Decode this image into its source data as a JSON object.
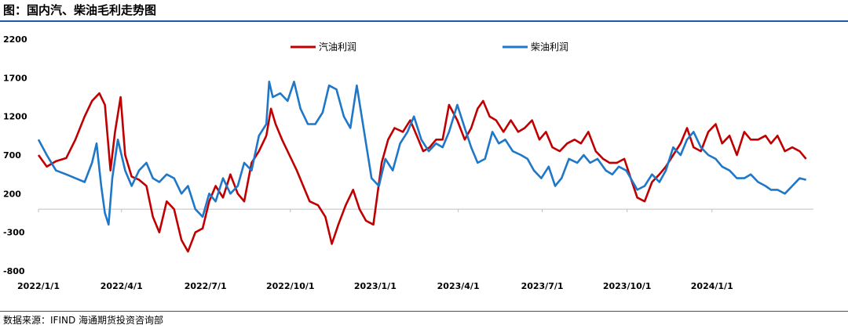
{
  "title": "图：国内汽、柴油毛利走势图",
  "source": "数据来源：IFIND   海通期货投资咨询部",
  "colors": {
    "gasoline": "#c00000",
    "diesel": "#1f77c8",
    "rule": "#1f5aa6"
  },
  "chart_data": {
    "type": "line",
    "title": "图：国内汽、柴油毛利走势图",
    "xlabel": "",
    "ylabel": "",
    "ylim": [
      -800,
      2200
    ],
    "yticks": [
      2200,
      1700,
      1200,
      700,
      200,
      -300,
      -800
    ],
    "xlim": [
      "2022-01-01",
      "2024-04-20"
    ],
    "xticks": [
      "2022/1/1",
      "2022/4/1",
      "2022/7/1",
      "2022/10/1",
      "2023/1/1",
      "2023/4/1",
      "2023/7/1",
      "2023/10/1",
      "2024/1/1"
    ],
    "grid": false,
    "legend": "top",
    "series": [
      {
        "name": "汽油利润",
        "color": "#c00000",
        "points": [
          [
            "2022-01-01",
            700
          ],
          [
            "2022-01-10",
            550
          ],
          [
            "2022-01-20",
            620
          ],
          [
            "2022-01-31",
            660
          ],
          [
            "2022-02-10",
            900
          ],
          [
            "2022-02-20",
            1200
          ],
          [
            "2022-02-28",
            1400
          ],
          [
            "2022-03-08",
            1500
          ],
          [
            "2022-03-14",
            1350
          ],
          [
            "2022-03-20",
            500
          ],
          [
            "2022-03-25",
            1000
          ],
          [
            "2022-03-31",
            1450
          ],
          [
            "2022-04-05",
            700
          ],
          [
            "2022-04-12",
            420
          ],
          [
            "2022-04-20",
            380
          ],
          [
            "2022-04-28",
            300
          ],
          [
            "2022-05-05",
            -100
          ],
          [
            "2022-05-12",
            -300
          ],
          [
            "2022-05-20",
            100
          ],
          [
            "2022-05-28",
            0
          ],
          [
            "2022-06-05",
            -400
          ],
          [
            "2022-06-12",
            -550
          ],
          [
            "2022-06-20",
            -300
          ],
          [
            "2022-06-28",
            -250
          ],
          [
            "2022-07-05",
            100
          ],
          [
            "2022-07-12",
            300
          ],
          [
            "2022-07-20",
            150
          ],
          [
            "2022-07-28",
            450
          ],
          [
            "2022-08-05",
            200
          ],
          [
            "2022-08-12",
            100
          ],
          [
            "2022-08-20",
            600
          ],
          [
            "2022-08-28",
            750
          ],
          [
            "2022-09-05",
            950
          ],
          [
            "2022-09-10",
            1300
          ],
          [
            "2022-09-15",
            1100
          ],
          [
            "2022-09-22",
            900
          ],
          [
            "2022-09-30",
            700
          ],
          [
            "2022-10-08",
            500
          ],
          [
            "2022-10-15",
            300
          ],
          [
            "2022-10-22",
            100
          ],
          [
            "2022-10-31",
            50
          ],
          [
            "2022-11-08",
            -100
          ],
          [
            "2022-11-15",
            -450
          ],
          [
            "2022-11-22",
            -200
          ],
          [
            "2022-11-30",
            50
          ],
          [
            "2022-12-08",
            250
          ],
          [
            "2022-12-15",
            0
          ],
          [
            "2022-12-22",
            -150
          ],
          [
            "2022-12-30",
            -200
          ],
          [
            "2023-01-08",
            600
          ],
          [
            "2023-01-15",
            900
          ],
          [
            "2023-01-22",
            1050
          ],
          [
            "2023-01-31",
            1000
          ],
          [
            "2023-02-08",
            1150
          ],
          [
            "2023-02-15",
            950
          ],
          [
            "2023-02-22",
            750
          ],
          [
            "2023-03-01",
            800
          ],
          [
            "2023-03-08",
            900
          ],
          [
            "2023-03-15",
            900
          ],
          [
            "2023-03-22",
            1350
          ],
          [
            "2023-03-31",
            1150
          ],
          [
            "2023-04-08",
            900
          ],
          [
            "2023-04-15",
            1050
          ],
          [
            "2023-04-22",
            1300
          ],
          [
            "2023-04-28",
            1400
          ],
          [
            "2023-05-05",
            1200
          ],
          [
            "2023-05-12",
            1150
          ],
          [
            "2023-05-20",
            1000
          ],
          [
            "2023-05-28",
            1150
          ],
          [
            "2023-06-05",
            1000
          ],
          [
            "2023-06-12",
            1050
          ],
          [
            "2023-06-20",
            1150
          ],
          [
            "2023-06-28",
            900
          ],
          [
            "2023-07-05",
            1000
          ],
          [
            "2023-07-12",
            800
          ],
          [
            "2023-07-20",
            750
          ],
          [
            "2023-07-28",
            850
          ],
          [
            "2023-08-05",
            900
          ],
          [
            "2023-08-12",
            850
          ],
          [
            "2023-08-20",
            1000
          ],
          [
            "2023-08-28",
            750
          ],
          [
            "2023-09-05",
            650
          ],
          [
            "2023-09-12",
            600
          ],
          [
            "2023-09-20",
            600
          ],
          [
            "2023-09-28",
            650
          ],
          [
            "2023-10-05",
            400
          ],
          [
            "2023-10-12",
            150
          ],
          [
            "2023-10-20",
            100
          ],
          [
            "2023-10-28",
            350
          ],
          [
            "2023-11-05",
            450
          ],
          [
            "2023-11-12",
            550
          ],
          [
            "2023-11-20",
            700
          ],
          [
            "2023-11-28",
            850
          ],
          [
            "2023-12-05",
            1050
          ],
          [
            "2023-12-12",
            800
          ],
          [
            "2023-12-20",
            750
          ],
          [
            "2023-12-28",
            1000
          ],
          [
            "2024-01-05",
            1100
          ],
          [
            "2024-01-12",
            850
          ],
          [
            "2024-01-20",
            950
          ],
          [
            "2024-01-28",
            700
          ],
          [
            "2024-02-05",
            1000
          ],
          [
            "2024-02-12",
            900
          ],
          [
            "2024-02-20",
            900
          ],
          [
            "2024-02-28",
            950
          ],
          [
            "2024-03-05",
            850
          ],
          [
            "2024-03-12",
            950
          ],
          [
            "2024-03-20",
            750
          ],
          [
            "2024-03-28",
            800
          ],
          [
            "2024-04-05",
            750
          ],
          [
            "2024-04-12",
            650
          ]
        ]
      },
      {
        "name": "柴油利润",
        "color": "#1f77c8",
        "points": [
          [
            "2022-01-01",
            900
          ],
          [
            "2022-01-10",
            700
          ],
          [
            "2022-01-20",
            500
          ],
          [
            "2022-01-31",
            450
          ],
          [
            "2022-02-10",
            400
          ],
          [
            "2022-02-20",
            350
          ],
          [
            "2022-02-28",
            600
          ],
          [
            "2022-03-05",
            850
          ],
          [
            "2022-03-10",
            300
          ],
          [
            "2022-03-14",
            -50
          ],
          [
            "2022-03-18",
            -200
          ],
          [
            "2022-03-22",
            400
          ],
          [
            "2022-03-28",
            900
          ],
          [
            "2022-04-05",
            500
          ],
          [
            "2022-04-12",
            300
          ],
          [
            "2022-04-20",
            500
          ],
          [
            "2022-04-28",
            600
          ],
          [
            "2022-05-05",
            400
          ],
          [
            "2022-05-12",
            350
          ],
          [
            "2022-05-20",
            450
          ],
          [
            "2022-05-28",
            400
          ],
          [
            "2022-06-05",
            200
          ],
          [
            "2022-06-12",
            300
          ],
          [
            "2022-06-20",
            0
          ],
          [
            "2022-06-28",
            -100
          ],
          [
            "2022-07-05",
            200
          ],
          [
            "2022-07-12",
            100
          ],
          [
            "2022-07-20",
            400
          ],
          [
            "2022-07-28",
            200
          ],
          [
            "2022-08-05",
            300
          ],
          [
            "2022-08-12",
            600
          ],
          [
            "2022-08-20",
            500
          ],
          [
            "2022-08-28",
            950
          ],
          [
            "2022-09-05",
            1100
          ],
          [
            "2022-09-08",
            1650
          ],
          [
            "2022-09-12",
            1450
          ],
          [
            "2022-09-20",
            1500
          ],
          [
            "2022-09-28",
            1400
          ],
          [
            "2022-10-05",
            1650
          ],
          [
            "2022-10-12",
            1300
          ],
          [
            "2022-10-20",
            1100
          ],
          [
            "2022-10-28",
            1100
          ],
          [
            "2022-11-05",
            1250
          ],
          [
            "2022-11-12",
            1600
          ],
          [
            "2022-11-20",
            1550
          ],
          [
            "2022-11-28",
            1200
          ],
          [
            "2022-12-05",
            1050
          ],
          [
            "2022-12-12",
            1600
          ],
          [
            "2022-12-20",
            1000
          ],
          [
            "2022-12-28",
            400
          ],
          [
            "2023-01-05",
            300
          ],
          [
            "2023-01-12",
            650
          ],
          [
            "2023-01-20",
            500
          ],
          [
            "2023-01-28",
            850
          ],
          [
            "2023-02-05",
            1000
          ],
          [
            "2023-02-12",
            1200
          ],
          [
            "2023-02-20",
            900
          ],
          [
            "2023-02-28",
            750
          ],
          [
            "2023-03-08",
            850
          ],
          [
            "2023-03-15",
            800
          ],
          [
            "2023-03-22",
            1000
          ],
          [
            "2023-03-31",
            1350
          ],
          [
            "2023-04-08",
            1050
          ],
          [
            "2023-04-15",
            800
          ],
          [
            "2023-04-22",
            600
          ],
          [
            "2023-04-30",
            650
          ],
          [
            "2023-05-08",
            1000
          ],
          [
            "2023-05-15",
            850
          ],
          [
            "2023-05-22",
            900
          ],
          [
            "2023-05-30",
            750
          ],
          [
            "2023-06-08",
            700
          ],
          [
            "2023-06-15",
            650
          ],
          [
            "2023-06-22",
            500
          ],
          [
            "2023-06-30",
            400
          ],
          [
            "2023-07-08",
            550
          ],
          [
            "2023-07-15",
            300
          ],
          [
            "2023-07-22",
            400
          ],
          [
            "2023-07-30",
            650
          ],
          [
            "2023-08-08",
            600
          ],
          [
            "2023-08-15",
            700
          ],
          [
            "2023-08-22",
            600
          ],
          [
            "2023-08-30",
            650
          ],
          [
            "2023-09-08",
            500
          ],
          [
            "2023-09-15",
            450
          ],
          [
            "2023-09-22",
            550
          ],
          [
            "2023-09-30",
            500
          ],
          [
            "2023-10-05",
            400
          ],
          [
            "2023-10-12",
            250
          ],
          [
            "2023-10-20",
            300
          ],
          [
            "2023-10-28",
            450
          ],
          [
            "2023-11-05",
            350
          ],
          [
            "2023-11-12",
            500
          ],
          [
            "2023-11-20",
            800
          ],
          [
            "2023-11-28",
            700
          ],
          [
            "2023-12-05",
            900
          ],
          [
            "2023-12-12",
            1000
          ],
          [
            "2023-12-20",
            800
          ],
          [
            "2023-12-28",
            700
          ],
          [
            "2024-01-05",
            650
          ],
          [
            "2024-01-12",
            550
          ],
          [
            "2024-01-20",
            500
          ],
          [
            "2024-01-28",
            400
          ],
          [
            "2024-02-05",
            400
          ],
          [
            "2024-02-12",
            450
          ],
          [
            "2024-02-20",
            350
          ],
          [
            "2024-02-28",
            300
          ],
          [
            "2024-03-05",
            250
          ],
          [
            "2024-03-12",
            250
          ],
          [
            "2024-03-20",
            200
          ],
          [
            "2024-03-28",
            300
          ],
          [
            "2024-04-05",
            400
          ],
          [
            "2024-04-12",
            380
          ]
        ]
      }
    ]
  }
}
